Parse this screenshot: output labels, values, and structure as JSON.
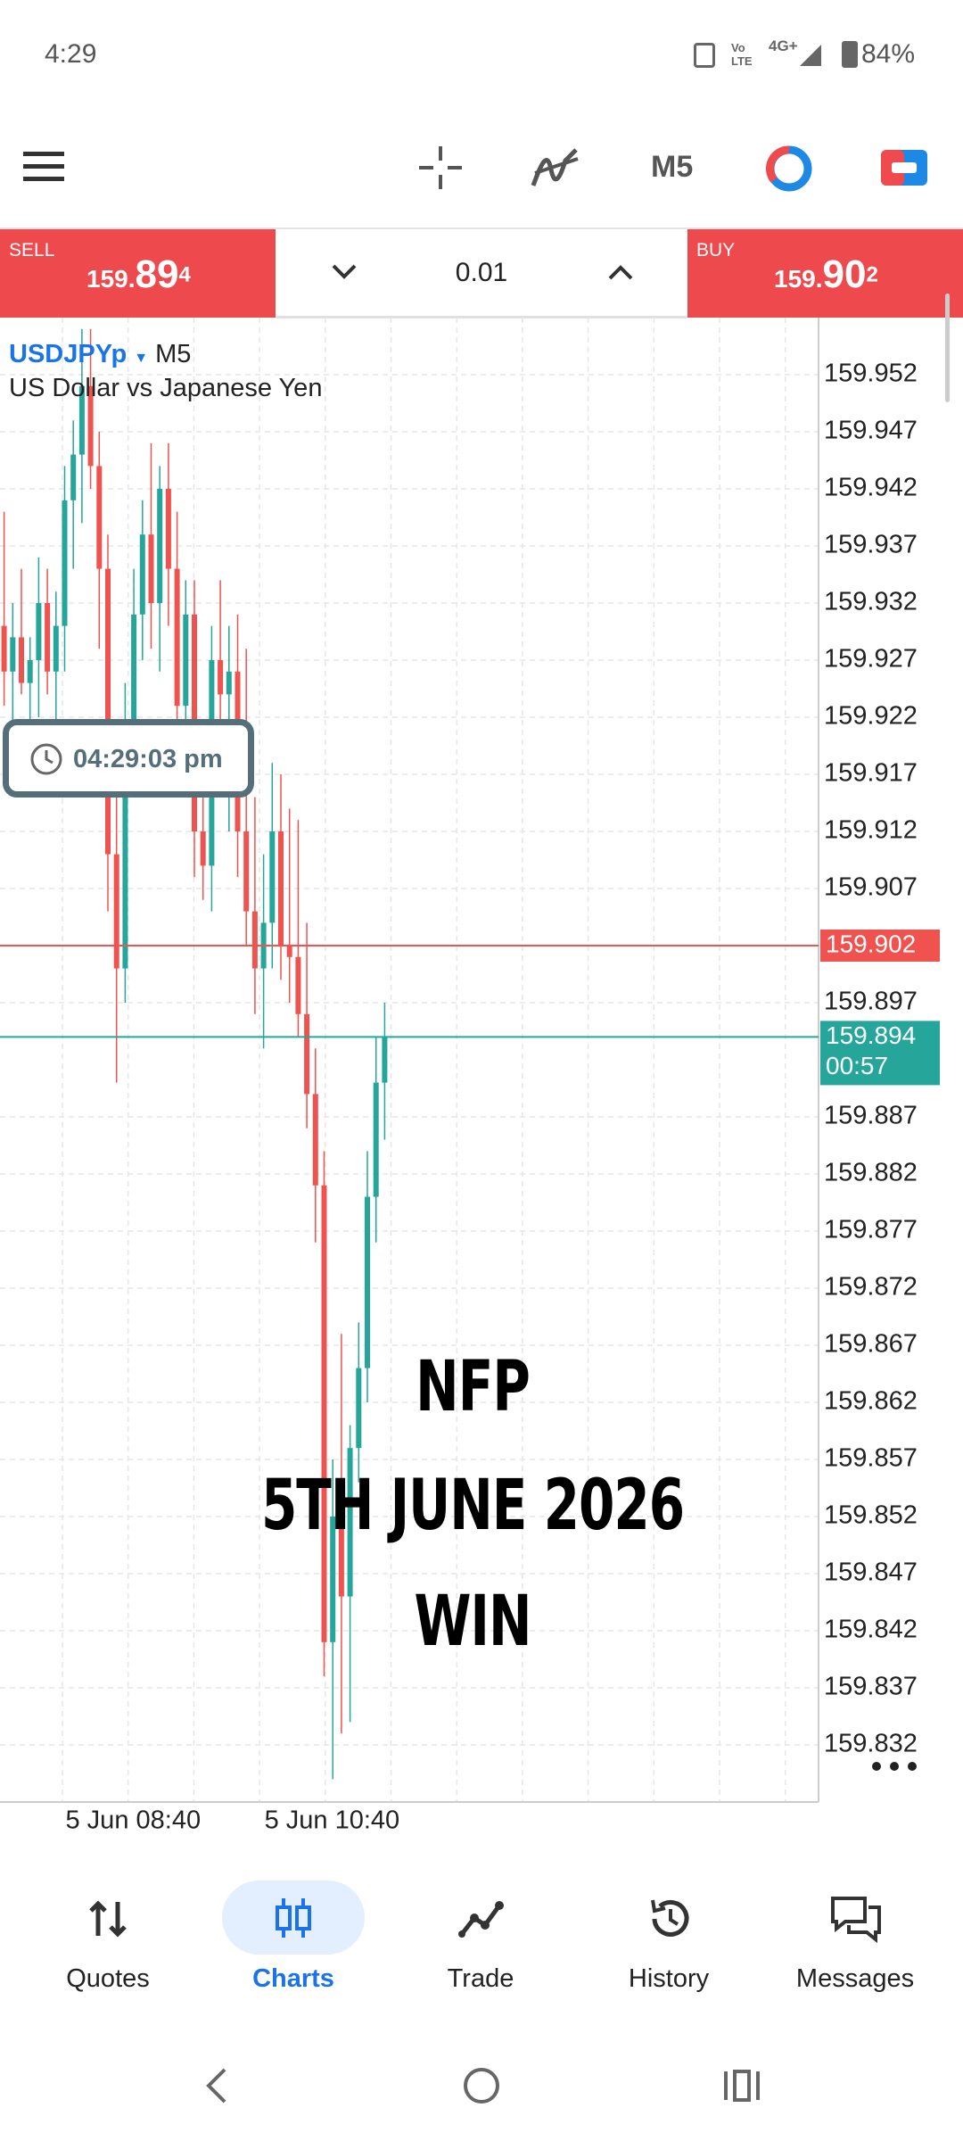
{
  "status_bar": {
    "time": "4:29",
    "volte": "Vo LTE",
    "network": "4G+",
    "battery": "84%"
  },
  "toolbar": {
    "timeframe": "M5"
  },
  "trade_panel": {
    "sell": {
      "label": "SELL",
      "price_prefix": "159.",
      "price_main": "89",
      "price_super": "4"
    },
    "volume": "0.01",
    "buy": {
      "label": "BUY",
      "price_prefix": "159.",
      "price_main": "90",
      "price_super": "2"
    }
  },
  "chart_header": {
    "symbol": "USDJPYp",
    "timeframe": "M5",
    "description": "US Dollar vs Japanese Yen"
  },
  "clock": "04:29:03 pm",
  "chart_data": {
    "type": "candlestick",
    "categories": [
      null,
      null,
      null,
      null,
      null,
      null,
      null,
      "5 Jun 08:40",
      null,
      null,
      null,
      null,
      null,
      null,
      null,
      null,
      null,
      null,
      null,
      null,
      null,
      null,
      null,
      null,
      null,
      null,
      null,
      null,
      null,
      null,
      "5 Jun 10:40",
      null,
      null,
      null,
      null,
      null,
      null,
      null,
      null,
      null,
      null,
      null,
      null,
      null,
      null
    ],
    "open": [
      159.93,
      159.926,
      159.929,
      159.925,
      159.927,
      159.932,
      159.926,
      159.93,
      159.941,
      159.945,
      159.951,
      159.944,
      159.935,
      159.91,
      159.9,
      159.921,
      159.931,
      159.938,
      159.932,
      159.942,
      159.935,
      159.923,
      159.931,
      159.912,
      159.909,
      159.927,
      159.924,
      159.926,
      159.912,
      159.905,
      159.9,
      159.904,
      159.912,
      159.902,
      159.901,
      159.896,
      159.889,
      159.881,
      159.841,
      159.852,
      159.845,
      159.858,
      159.865,
      159.88,
      159.89
    ],
    "high": [
      159.94,
      159.932,
      159.935,
      159.929,
      159.936,
      159.935,
      159.933,
      159.944,
      159.948,
      159.956,
      159.956,
      159.947,
      159.938,
      159.918,
      159.925,
      159.935,
      159.941,
      159.946,
      159.944,
      159.946,
      159.94,
      159.934,
      159.934,
      159.916,
      159.93,
      159.934,
      159.93,
      159.931,
      159.928,
      159.915,
      159.91,
      159.918,
      159.917,
      159.914,
      159.913,
      159.904,
      159.893,
      159.884,
      159.857,
      159.868,
      159.86,
      159.869,
      159.884,
      159.894,
      159.897
    ],
    "low": [
      159.923,
      159.92,
      159.924,
      159.917,
      159.922,
      159.924,
      159.921,
      159.926,
      159.935,
      159.939,
      159.942,
      159.928,
      159.905,
      159.89,
      159.897,
      159.915,
      159.927,
      159.928,
      159.926,
      159.93,
      159.917,
      159.918,
      159.908,
      159.906,
      159.905,
      159.92,
      159.912,
      159.908,
      159.902,
      159.896,
      159.893,
      159.9,
      159.899,
      159.897,
      159.894,
      159.886,
      159.876,
      159.838,
      159.829,
      159.833,
      159.834,
      159.855,
      159.862,
      159.876,
      159.885
    ],
    "close": [
      159.926,
      159.929,
      159.925,
      159.927,
      159.932,
      159.926,
      159.93,
      159.941,
      159.945,
      159.951,
      159.944,
      159.935,
      159.91,
      159.9,
      159.921,
      159.931,
      159.938,
      159.932,
      159.942,
      159.935,
      159.923,
      159.931,
      159.912,
      159.909,
      159.927,
      159.924,
      159.926,
      159.912,
      159.905,
      159.9,
      159.904,
      159.912,
      159.902,
      159.901,
      159.896,
      159.889,
      159.881,
      159.841,
      159.852,
      159.845,
      159.858,
      159.865,
      159.88,
      159.89,
      159.894
    ],
    "up_color": "#26a69a",
    "down_color": "#ef5350",
    "ylim": [
      159.827,
      159.957
    ],
    "yticks": [
      159.952,
      159.947,
      159.942,
      159.937,
      159.932,
      159.927,
      159.922,
      159.917,
      159.912,
      159.907,
      159.897,
      159.887,
      159.882,
      159.877,
      159.872,
      159.867,
      159.862,
      159.857,
      159.852,
      159.847,
      159.842,
      159.837,
      159.832
    ],
    "grid": true,
    "ask": {
      "value": 159.902,
      "color": "#f0524f"
    },
    "bid": {
      "value": 159.894,
      "color": "#26a69a",
      "countdown": "00:57"
    }
  },
  "overlay": [
    "NFP",
    "5TH JUNE 2026",
    "WIN"
  ],
  "bottom_nav": [
    "Quotes",
    "Charts",
    "Trade",
    "History",
    "Messages"
  ]
}
